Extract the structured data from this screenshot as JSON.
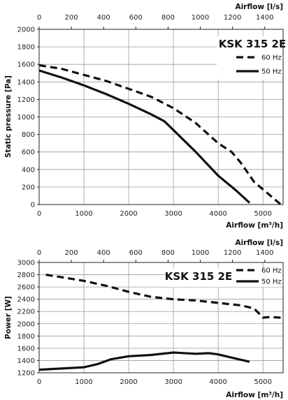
{
  "chart_data": [
    {
      "type": "line",
      "title": "KSK 315 2E",
      "xlabel": "Airflow [m³/h]",
      "x2label": "Airflow [l/s]",
      "ylabel": "Static pressure [Pa]",
      "xlim": [
        0,
        5450
      ],
      "ylim": [
        0,
        2000
      ],
      "x_ticks": [
        0,
        1000,
        2000,
        3000,
        4000,
        5000
      ],
      "x2_ticks": [
        0,
        200,
        400,
        600,
        800,
        1000,
        1200,
        1400
      ],
      "y_ticks": [
        0,
        200,
        400,
        600,
        800,
        1000,
        1200,
        1400,
        1600,
        1800,
        2000
      ],
      "grid": true,
      "legend": "top-right",
      "series": [
        {
          "name": "60 Hz",
          "style": "dashed",
          "x": [
            0,
            500,
            1000,
            1500,
            2000,
            2500,
            3000,
            3500,
            4000,
            4300,
            4500,
            4800,
            5100,
            5400
          ],
          "y": [
            1590,
            1550,
            1480,
            1410,
            1320,
            1230,
            1100,
            930,
            700,
            600,
            480,
            260,
            130,
            0
          ]
        },
        {
          "name": "50 Hz",
          "style": "solid",
          "x": [
            0,
            500,
            1000,
            1500,
            2000,
            2500,
            2800,
            3000,
            3500,
            4000,
            4400,
            4700
          ],
          "y": [
            1530,
            1450,
            1360,
            1260,
            1150,
            1030,
            950,
            850,
            600,
            330,
            160,
            20
          ]
        }
      ]
    },
    {
      "type": "line",
      "title": "KSK 315 2E",
      "xlabel": "Airflow [m³/h]",
      "x2label": "Airflow [l/s]",
      "ylabel": "Power [W]",
      "xlim": [
        0,
        5450
      ],
      "ylim": [
        1200,
        3000
      ],
      "x_ticks": [
        0,
        1000,
        2000,
        3000,
        4000,
        5000
      ],
      "x2_ticks": [
        0,
        200,
        400,
        600,
        800,
        1000,
        1200,
        1400
      ],
      "y_ticks": [
        1200,
        1400,
        1600,
        1800,
        2000,
        2200,
        2400,
        2600,
        2800,
        3000
      ],
      "grid": true,
      "legend": "top-right",
      "series": [
        {
          "name": "60 Hz",
          "style": "dashed",
          "x": [
            150,
            500,
            1000,
            1500,
            2000,
            2500,
            3000,
            3500,
            4000,
            4500,
            4800,
            5000,
            5150,
            5400
          ],
          "y": [
            2800,
            2760,
            2700,
            2620,
            2520,
            2440,
            2400,
            2380,
            2340,
            2300,
            2250,
            2100,
            2110,
            2100
          ]
        },
        {
          "name": "50 Hz",
          "style": "solid",
          "x": [
            0,
            500,
            1000,
            1300,
            1600,
            2000,
            2500,
            3000,
            3500,
            3800,
            4000,
            4400,
            4700
          ],
          "y": [
            1250,
            1270,
            1290,
            1340,
            1420,
            1470,
            1490,
            1530,
            1510,
            1520,
            1500,
            1430,
            1380
          ]
        }
      ]
    }
  ]
}
